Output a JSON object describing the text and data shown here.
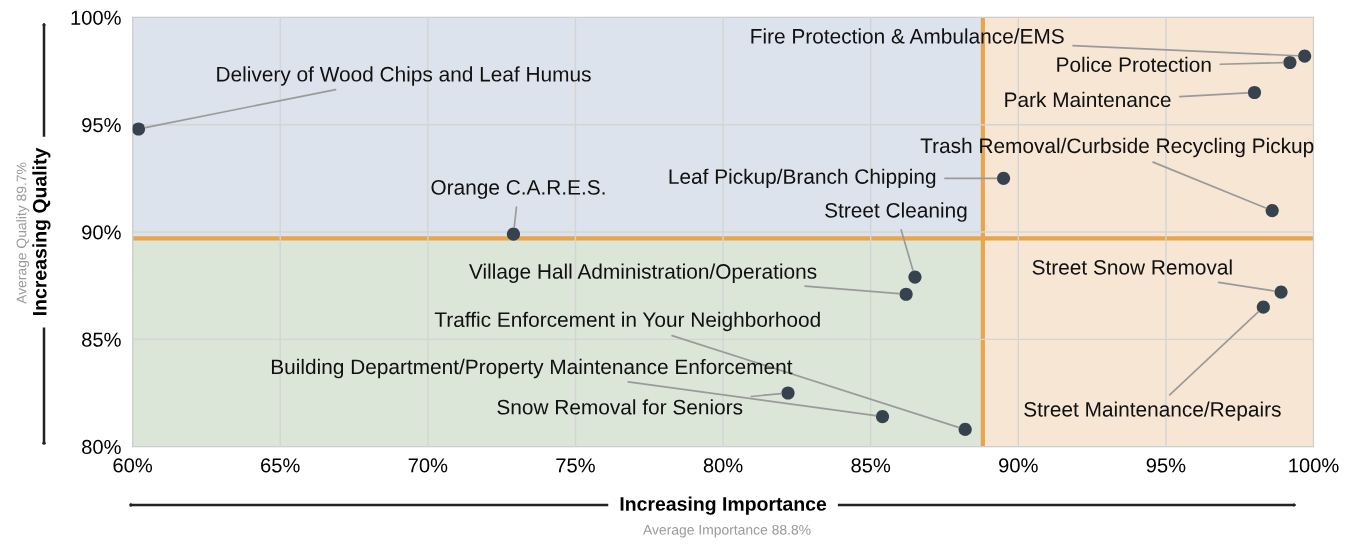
{
  "chart_data": {
    "type": "scatter",
    "xlabel": "Increasing Importance",
    "ylabel": "Increasing Quality",
    "x": [
      60.2,
      72.9,
      99.7,
      99.2,
      98.0,
      98.6,
      89.5,
      86.5,
      86.2,
      88.2,
      85.4,
      82.2,
      98.9,
      98.3
    ],
    "values": [
      94.8,
      89.9,
      98.2,
      97.9,
      96.5,
      91.0,
      92.5,
      87.9,
      87.1,
      80.8,
      81.4,
      82.5,
      87.2,
      86.5
    ],
    "color": "#37424f",
    "marker": "circle",
    "grid": true,
    "xlim": [
      60,
      100
    ],
    "ylim": [
      80,
      100
    ],
    "xticks": [
      {
        "value": 60,
        "label": "60%"
      },
      {
        "value": 65,
        "label": "65%"
      },
      {
        "value": 70,
        "label": "70%"
      },
      {
        "value": 75,
        "label": "75%"
      },
      {
        "value": 80,
        "label": "80%"
      },
      {
        "value": 85,
        "label": "85%"
      },
      {
        "value": 90,
        "label": "90%"
      },
      {
        "value": 95,
        "label": "95%"
      },
      {
        "value": 100,
        "label": "100%"
      }
    ],
    "yticks": [
      {
        "value": 80,
        "label": "80%"
      },
      {
        "value": 85,
        "label": "85%"
      },
      {
        "value": 90,
        "label": "90%"
      },
      {
        "value": 95,
        "label": "95%"
      },
      {
        "value": 100,
        "label": "100%"
      }
    ],
    "ref_lines": [
      {
        "axis": "x",
        "value": 88.8,
        "color": "#e8a54b"
      },
      {
        "axis": "y",
        "value": 89.7,
        "color": "#e8a54b"
      }
    ],
    "bands": [
      {
        "axis": "y",
        "from": 89.7,
        "to": 100,
        "color": "#dde3ec"
      },
      {
        "axis": "y",
        "from": 80,
        "to": 89.7,
        "color": "#dbe5d8"
      },
      {
        "axis": "x",
        "from": 88.8,
        "to": 100,
        "color": "#f7e6d3"
      }
    ],
    "annotations": [
      {
        "text": "Delivery of Wood Chips and Leaf Humus",
        "x": 60.2,
        "y": 94.8
      },
      {
        "text": "Orange C.A.R.E.S.",
        "x": 72.9,
        "y": 89.9
      },
      {
        "text": "Fire Protection & Ambulance/EMS",
        "x": 99.7,
        "y": 98.2
      },
      {
        "text": "Police Protection",
        "x": 99.2,
        "y": 97.9
      },
      {
        "text": "Park Maintenance",
        "x": 98.0,
        "y": 96.5
      },
      {
        "text": "Trash Removal/Curbside Recycling Pickup",
        "x": 98.6,
        "y": 91.0
      },
      {
        "text": "Leaf Pickup/Branch Chipping",
        "x": 89.5,
        "y": 92.5
      },
      {
        "text": "Street Cleaning",
        "x": 86.5,
        "y": 87.9
      },
      {
        "text": "Village Hall Administration/Operations",
        "x": 86.2,
        "y": 87.1
      },
      {
        "text": "Traffic Enforcement in Your Neighborhood",
        "x": 88.2,
        "y": 80.8
      },
      {
        "text": "Building Department/Property Maintenance Enforcement",
        "x": 85.4,
        "y": 81.4
      },
      {
        "text": "Snow Removal for Seniors",
        "x": 82.2,
        "y": 82.5
      },
      {
        "text": "Street Snow Removal",
        "x": 98.9,
        "y": 87.2
      },
      {
        "text": "Street Maintenance/Repairs",
        "x": 98.3,
        "y": 86.5
      },
      "Average Importance 88.8%",
      "Average Quality 89.7%"
    ]
  }
}
